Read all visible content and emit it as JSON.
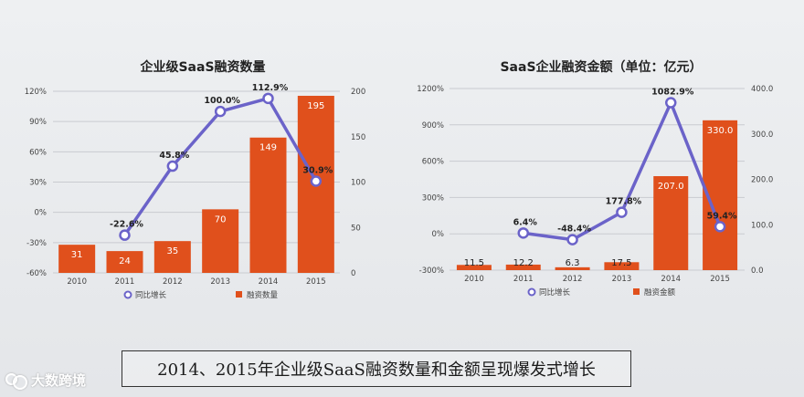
{
  "chart_data": [
    {
      "type": "bar",
      "title": "企业级SaaS融资数量",
      "categories": [
        "2010",
        "2011",
        "2012",
        "2013",
        "2014",
        "2015"
      ],
      "series": [
        {
          "name": "融资数量",
          "kind": "bar",
          "axis": "right",
          "values": [
            31,
            24,
            35,
            70,
            149,
            195
          ],
          "labels": [
            "31",
            "24",
            "35",
            "70",
            "149",
            "195"
          ]
        },
        {
          "name": "同比增长",
          "kind": "line",
          "axis": "left",
          "values": [
            null,
            -22.6,
            45.8,
            100.0,
            112.9,
            30.9
          ],
          "labels": [
            "",
            "-22.6%",
            "45.8%",
            "100.0%",
            "112.9%",
            "30.9%"
          ]
        }
      ],
      "left_axis": {
        "ticks": [
          -60,
          -30,
          0,
          30,
          60,
          90,
          120
        ],
        "tick_labels": [
          "-60%",
          "-30%",
          "0%",
          "30%",
          "60%",
          "90%",
          "120%"
        ],
        "range": [
          -60,
          120
        ]
      },
      "right_axis": {
        "ticks": [
          0,
          50,
          100,
          150,
          200
        ],
        "tick_labels": [
          "0",
          "50",
          "100",
          "150",
          "200"
        ],
        "range": [
          0,
          200
        ]
      },
      "grid": true,
      "legend_position": "bottom"
    },
    {
      "type": "bar",
      "title": "SaaS企业融资金额（单位：亿元）",
      "categories": [
        "2010",
        "2011",
        "2012",
        "2013",
        "2014",
        "2015"
      ],
      "series": [
        {
          "name": "融资金额",
          "kind": "bar",
          "axis": "right",
          "values": [
            11.5,
            12.2,
            6.3,
            17.5,
            207.0,
            330.0
          ],
          "labels": [
            "11.5",
            "12.2",
            "6.3",
            "17.5",
            "207.0",
            "330.0"
          ]
        },
        {
          "name": "同比增长",
          "kind": "line",
          "axis": "left",
          "values": [
            null,
            6.4,
            -48.4,
            177.8,
            1082.9,
            59.4
          ],
          "labels": [
            "",
            "6.4%",
            "-48.4%",
            "177.8%",
            "1082.9%",
            "59.4%"
          ]
        }
      ],
      "left_axis": {
        "ticks": [
          -300,
          0,
          300,
          600,
          900,
          1200
        ],
        "tick_labels": [
          "-300%",
          "0%",
          "300%",
          "600%",
          "900%",
          "1200%"
        ],
        "range": [
          -300,
          1200
        ]
      },
      "right_axis": {
        "ticks": [
          0,
          100,
          200,
          300,
          400
        ],
        "tick_labels": [
          "0.0",
          "100.0",
          "200.0",
          "300.0",
          "400.0"
        ],
        "range": [
          0,
          400
        ]
      },
      "grid": true,
      "legend_position": "bottom"
    }
  ],
  "caption": "2014、2015年企业级SaaS融资数量和金额呈现爆发式增长",
  "logo": {
    "text": "大数跨境"
  },
  "colors": {
    "bar": "#e0501c",
    "line": "#6b63c9",
    "grid": "#c9cbd0",
    "axis_text": "#444444"
  }
}
